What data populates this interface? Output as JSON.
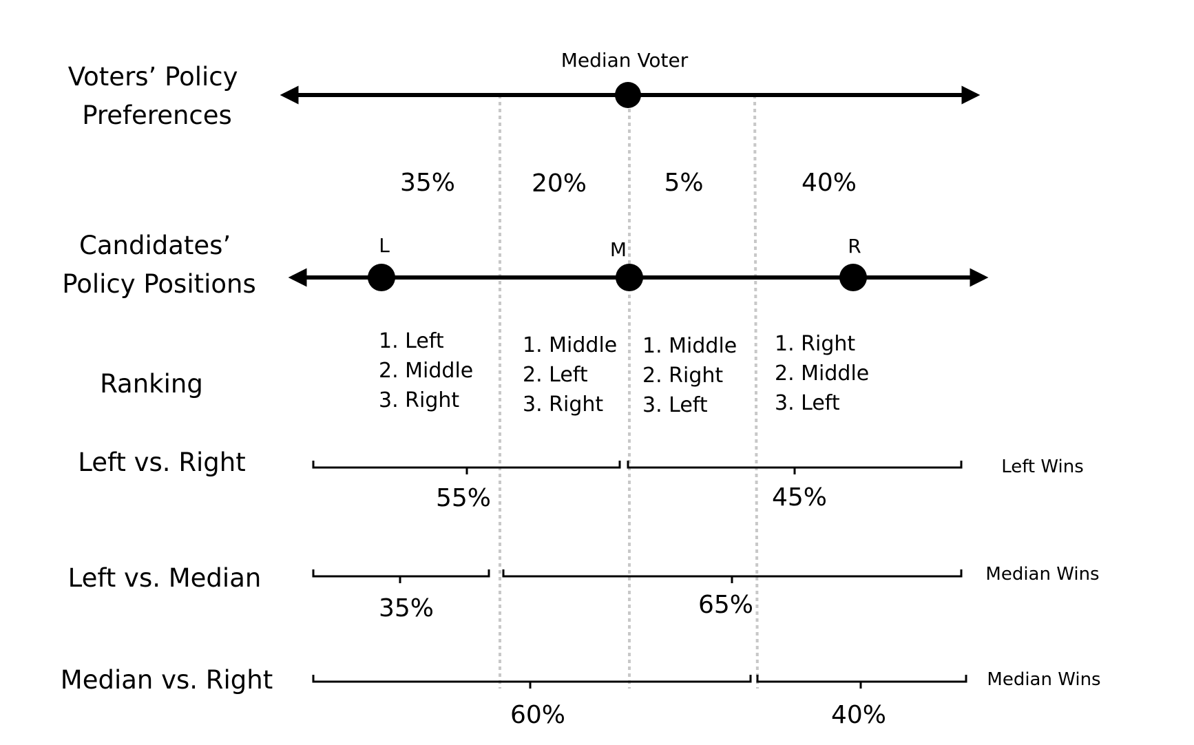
{
  "rows": {
    "voters": [
      "Voters’ Policy",
      "Preferences"
    ],
    "candidates": [
      "Candidates’",
      "Policy Positions"
    ],
    "ranking": "Ranking",
    "left_vs_right": "Left vs. Right",
    "left_vs_median": "Left vs. Median",
    "median_vs_right": "Median vs. Right"
  },
  "median_voter_label": "Median Voter",
  "segment_shares": [
    "35%",
    "20%",
    "5%",
    "40%"
  ],
  "candidates": [
    "L",
    "M",
    "R"
  ],
  "rankings": [
    [
      "1. Left",
      "2. Middle",
      "3. Right"
    ],
    [
      "1. Middle",
      "2. Left",
      "3. Right"
    ],
    [
      "1. Middle",
      "2. Right",
      "3. Left"
    ],
    [
      "1. Right",
      "2. Middle",
      "3. Left"
    ]
  ],
  "contests": [
    {
      "left_share": "55%",
      "right_share": "45%",
      "result": "Left Wins"
    },
    {
      "left_share": "35%",
      "right_share": "65%",
      "result": "Median Wins"
    },
    {
      "left_share": "60%",
      "right_share": "40%",
      "result": "Median Wins"
    }
  ]
}
